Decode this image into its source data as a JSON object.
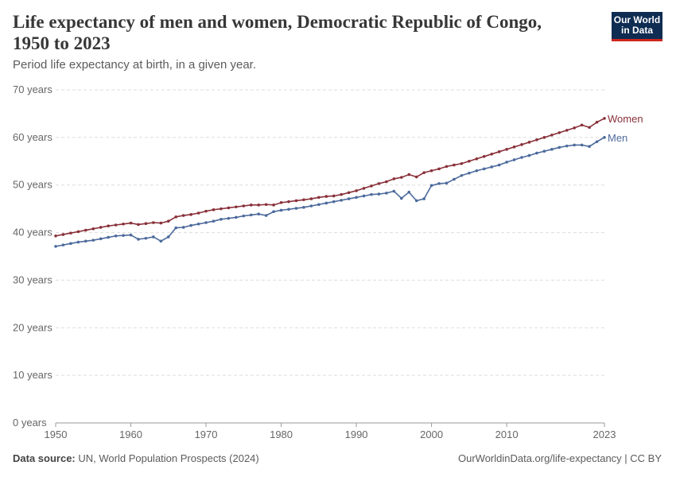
{
  "header": {
    "title": "Life expectancy of men and women, Democratic Republic of Congo, 1950 to 2023",
    "subtitle": "Period life expectancy at birth, in a given year.",
    "logo_line1": "Our World",
    "logo_line2": "in Data"
  },
  "footer": {
    "source_label": "Data source:",
    "source_text": "UN, World Population Prospects (2024)",
    "url_text": "OurWorldinData.org/life-expectancy | CC BY"
  },
  "colors": {
    "women": "#883039",
    "men": "#4c6a9c",
    "grid": "#dddddd",
    "axis_text": "#666666"
  },
  "chart_data": {
    "type": "line",
    "title": "Life expectancy of men and women, Democratic Republic of Congo, 1950 to 2023",
    "subtitle": "Period life expectancy at birth, in a given year.",
    "xlim": [
      1950,
      2023
    ],
    "ylim": [
      0,
      70
    ],
    "y_ticks": [
      0,
      10,
      20,
      30,
      40,
      50,
      60,
      70
    ],
    "y_tick_labels": [
      "0 years",
      "10 years",
      "20 years",
      "30 years",
      "40 years",
      "50 years",
      "60 years",
      "70 years"
    ],
    "x_ticks": [
      1950,
      1960,
      1970,
      1980,
      1990,
      2000,
      2010,
      2023
    ],
    "x_tick_labels": [
      "1950",
      "1960",
      "1970",
      "1980",
      "1990",
      "2000",
      "2010",
      "2023"
    ],
    "grid": "horizontal dashed",
    "legend": "line-end labels",
    "x": [
      1950,
      1951,
      1952,
      1953,
      1954,
      1955,
      1956,
      1957,
      1958,
      1959,
      1960,
      1961,
      1962,
      1963,
      1964,
      1965,
      1966,
      1967,
      1968,
      1969,
      1970,
      1971,
      1972,
      1973,
      1974,
      1975,
      1976,
      1977,
      1978,
      1979,
      1980,
      1981,
      1982,
      1983,
      1984,
      1985,
      1986,
      1987,
      1988,
      1989,
      1990,
      1991,
      1992,
      1993,
      1994,
      1995,
      1996,
      1997,
      1998,
      1999,
      2000,
      2001,
      2002,
      2003,
      2004,
      2005,
      2006,
      2007,
      2008,
      2009,
      2010,
      2011,
      2012,
      2013,
      2014,
      2015,
      2016,
      2017,
      2018,
      2019,
      2020,
      2021,
      2022,
      2023
    ],
    "series": [
      {
        "name": "Women",
        "color": "#883039",
        "values": [
          39.3,
          39.6,
          39.9,
          40.2,
          40.5,
          40.8,
          41.1,
          41.4,
          41.6,
          41.8,
          42.0,
          41.7,
          41.9,
          42.1,
          42.0,
          42.4,
          43.3,
          43.6,
          43.8,
          44.1,
          44.5,
          44.8,
          45.0,
          45.2,
          45.4,
          45.6,
          45.8,
          45.8,
          45.9,
          45.8,
          46.3,
          46.5,
          46.7,
          46.9,
          47.1,
          47.4,
          47.6,
          47.7,
          48.0,
          48.4,
          48.8,
          49.3,
          49.8,
          50.3,
          50.7,
          51.3,
          51.6,
          52.2,
          51.7,
          52.6,
          53.0,
          53.4,
          53.9,
          54.2,
          54.5,
          55.0,
          55.5,
          56.0,
          56.5,
          57.0,
          57.5,
          58.0,
          58.5,
          59.0,
          59.5,
          60.0,
          60.5,
          61.0,
          61.5,
          62.0,
          62.6,
          62.1,
          63.2,
          64.0
        ]
      },
      {
        "name": "Men",
        "color": "#4c6a9c",
        "values": [
          37.1,
          37.4,
          37.7,
          38.0,
          38.2,
          38.4,
          38.7,
          39.0,
          39.3,
          39.4,
          39.5,
          38.6,
          38.8,
          39.1,
          38.2,
          39.1,
          41.0,
          41.1,
          41.5,
          41.8,
          42.1,
          42.4,
          42.8,
          43.0,
          43.2,
          43.5,
          43.7,
          43.9,
          43.6,
          44.4,
          44.7,
          44.9,
          45.1,
          45.3,
          45.6,
          45.9,
          46.2,
          46.5,
          46.8,
          47.1,
          47.4,
          47.7,
          48.0,
          48.1,
          48.3,
          48.7,
          47.2,
          48.5,
          46.7,
          47.1,
          49.9,
          50.3,
          50.4,
          51.2,
          52.0,
          52.5,
          53.0,
          53.4,
          53.8,
          54.2,
          54.8,
          55.3,
          55.8,
          56.2,
          56.7,
          57.1,
          57.5,
          57.9,
          58.2,
          58.4,
          58.4,
          58.1,
          59.1,
          60.0
        ]
      }
    ]
  }
}
